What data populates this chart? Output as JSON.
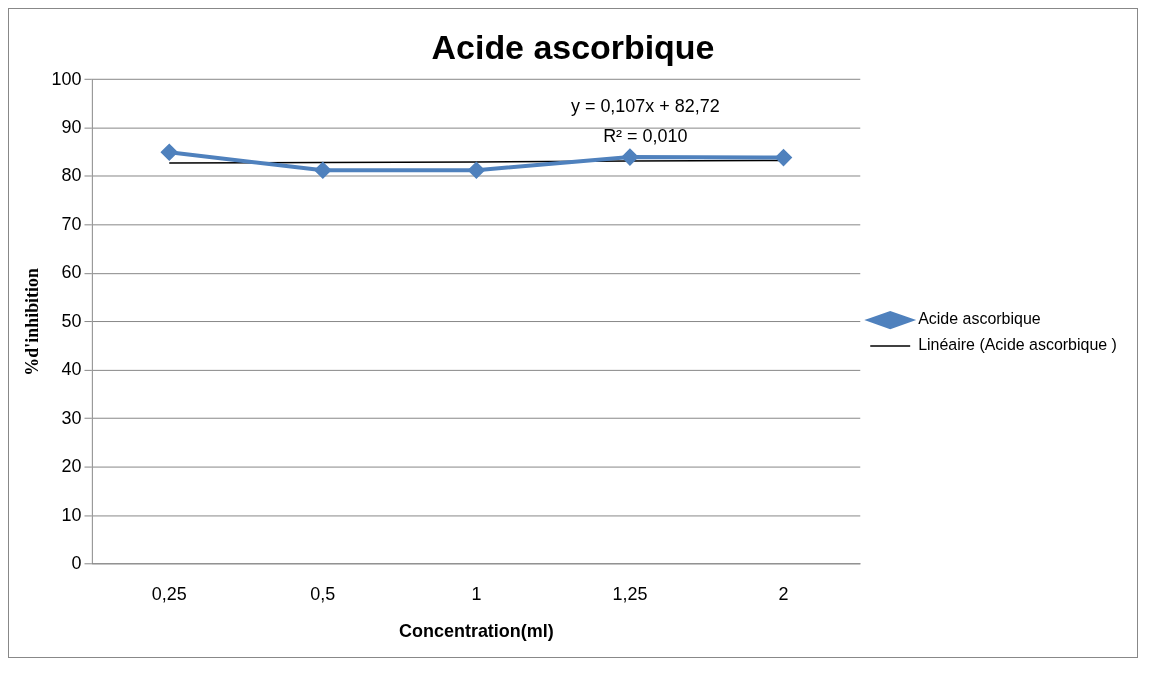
{
  "chart_data": {
    "type": "line",
    "title": "Acide ascorbique",
    "xlabel": "Concentration(ml)",
    "ylabel": "%d'inhibition",
    "categories": [
      "0,25",
      "0,5",
      "1",
      "1,25",
      "2"
    ],
    "series": [
      {
        "name": "Acide ascorbique",
        "color": "#4f81bd",
        "values": [
          85.0,
          81.3,
          81.3,
          84.0,
          83.9
        ],
        "marker": "diamond"
      },
      {
        "name": "Linéaire (Acide ascorbique )",
        "type": "line",
        "color": "#000000",
        "values": [
          82.8,
          82.9,
          83.0,
          83.2,
          83.3
        ],
        "marker": "none"
      }
    ],
    "annotations": [
      "y = 0,107x + 82,72",
      "R² = 0,010"
    ],
    "ylim": [
      0,
      100
    ],
    "yticks": [
      0,
      10,
      20,
      30,
      40,
      50,
      60,
      70,
      80,
      90,
      100
    ],
    "grid": "y",
    "legend": "right"
  }
}
